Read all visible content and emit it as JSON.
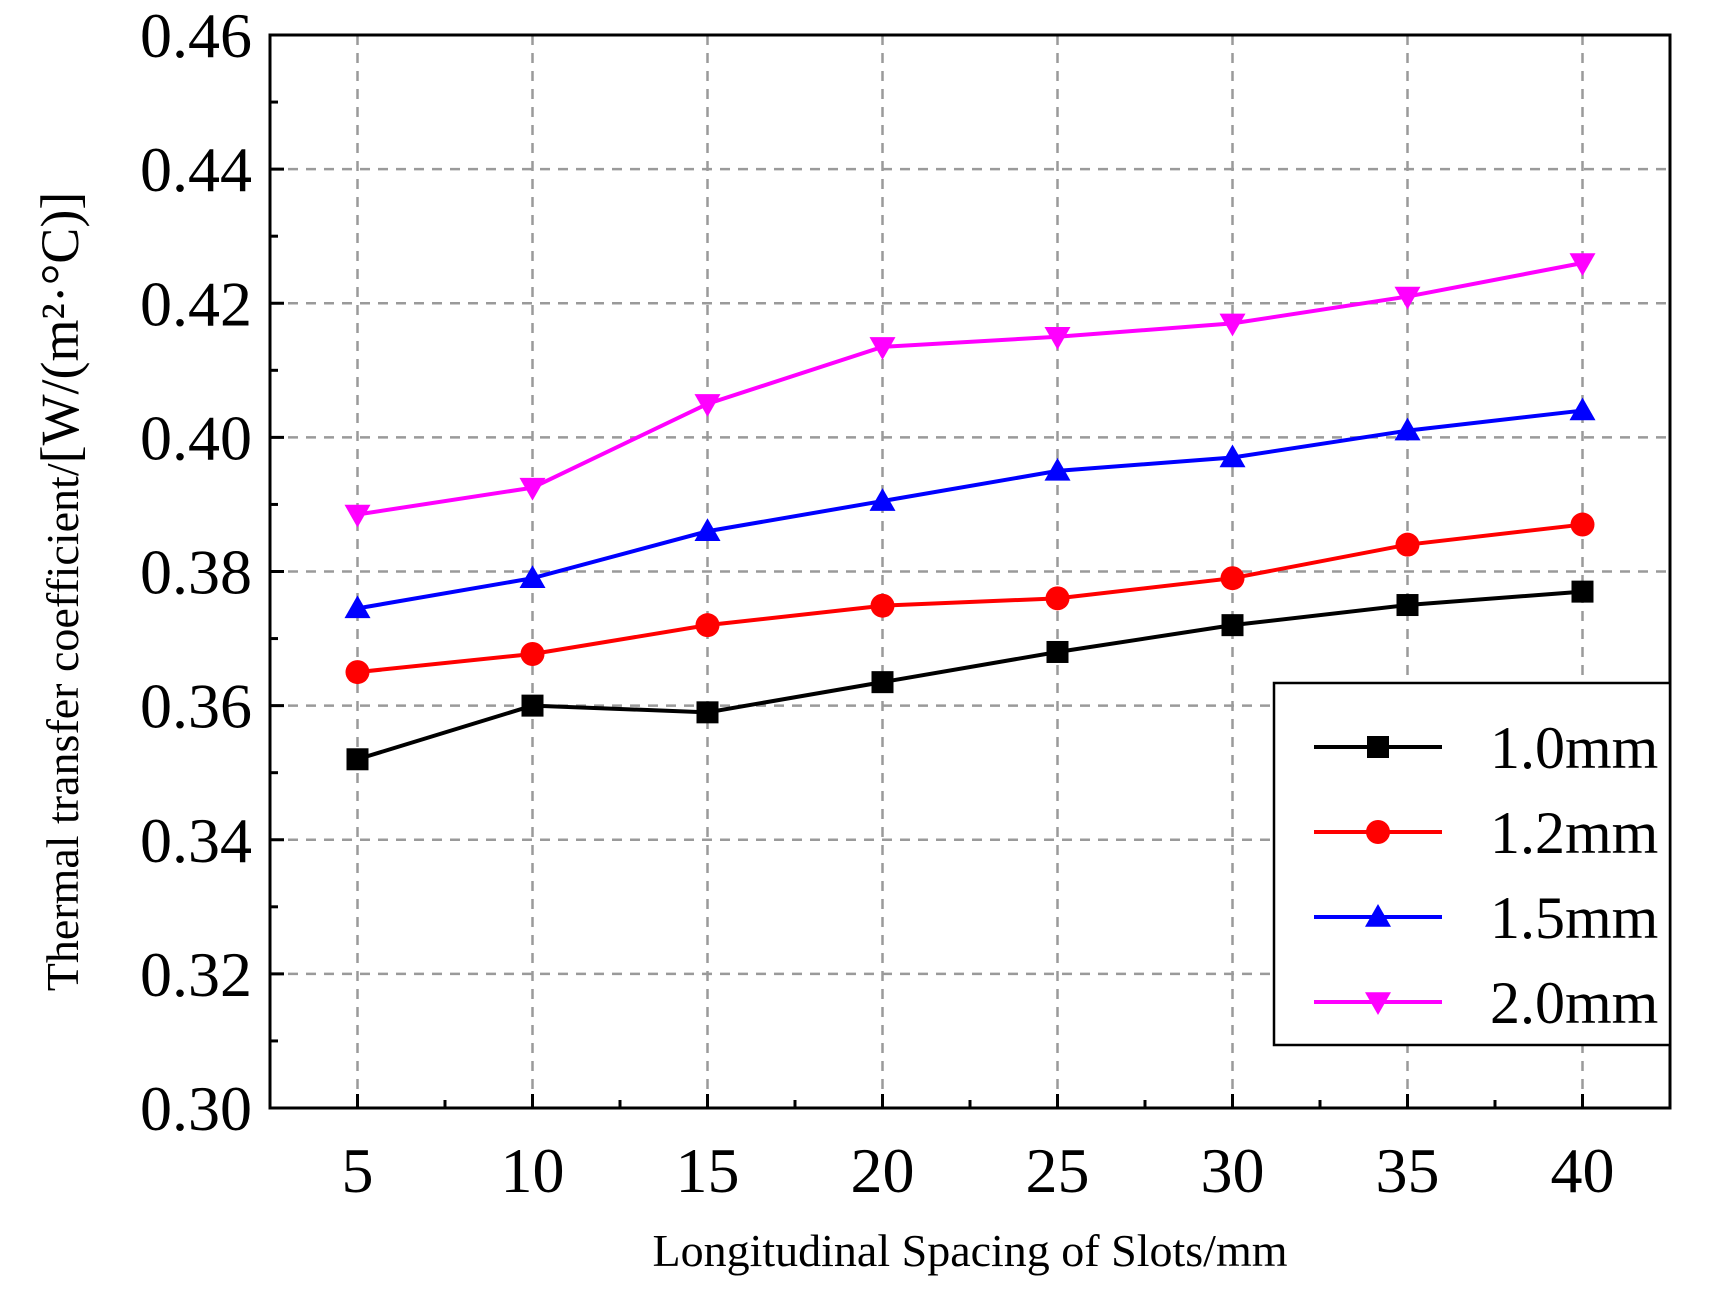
{
  "chart_data": {
    "type": "line",
    "title": "",
    "xlabel": "Longitudinal Spacing of Slots/mm",
    "ylabel": "Thermal transfer coefficient/",
    "ylabel_unit": "[W/(m²·°C)]",
    "x": [
      5,
      10,
      15,
      20,
      25,
      30,
      35,
      40
    ],
    "x_tick_labels": [
      "5",
      "10",
      "15",
      "20",
      "25",
      "30",
      "35",
      "40"
    ],
    "xlim": [
      2.5,
      42.5
    ],
    "ylim": [
      0.3,
      0.46
    ],
    "y_ticks": [
      0.3,
      0.32,
      0.34,
      0.36,
      0.38,
      0.4,
      0.42,
      0.44,
      0.46
    ],
    "y_tick_labels": [
      "0.30",
      "0.32",
      "0.34",
      "0.36",
      "0.38",
      "0.40",
      "0.42",
      "0.44",
      "0.46"
    ],
    "grid": true,
    "legend_position": "bottom-right",
    "series": [
      {
        "name": "1.0mm",
        "color": "#000000",
        "marker": "square",
        "values": [
          0.352,
          0.36,
          0.359,
          0.3635,
          0.368,
          0.372,
          0.375,
          0.377
        ]
      },
      {
        "name": "1.2mm",
        "color": "#ff0000",
        "marker": "circle",
        "values": [
          0.365,
          0.3677,
          0.372,
          0.3749,
          0.376,
          0.379,
          0.384,
          0.387
        ]
      },
      {
        "name": "1.5mm",
        "color": "#0000ff",
        "marker": "triangle-up",
        "values": [
          0.3745,
          0.379,
          0.386,
          0.3905,
          0.395,
          0.397,
          0.401,
          0.404
        ]
      },
      {
        "name": "2.0mm",
        "color": "#ff00ff",
        "marker": "triangle-down",
        "values": [
          0.3885,
          0.3925,
          0.405,
          0.4135,
          0.415,
          0.417,
          0.421,
          0.426
        ]
      }
    ]
  }
}
